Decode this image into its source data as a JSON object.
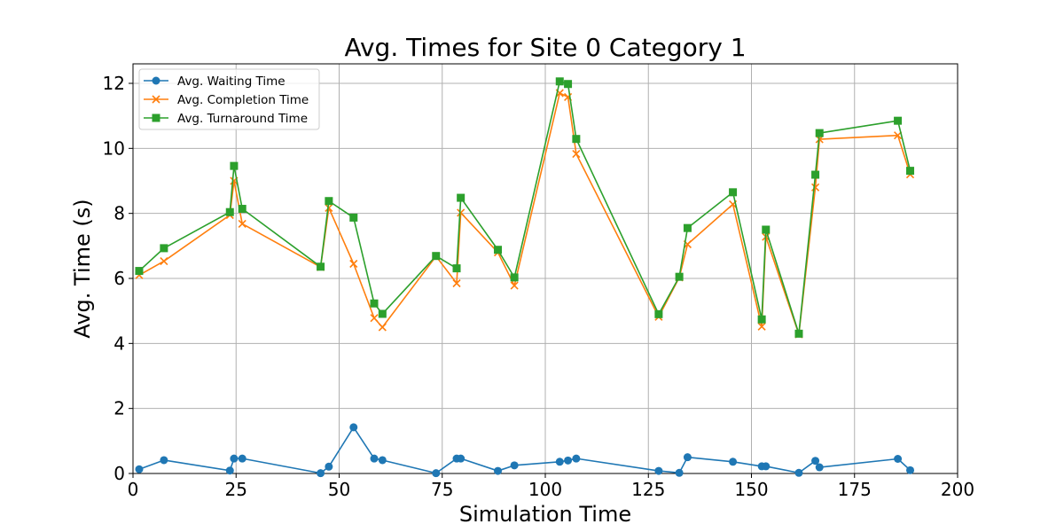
{
  "chart_data": {
    "type": "line",
    "title": "Avg. Times for Site 0 Category 1",
    "xlabel": "Simulation Time",
    "ylabel": "Avg. Time (s)",
    "xlim": [
      0,
      200
    ],
    "ylim": [
      0,
      12.6
    ],
    "xticks": [
      0,
      25,
      50,
      75,
      100,
      125,
      150,
      175,
      200
    ],
    "yticks": [
      0,
      2,
      4,
      6,
      8,
      10,
      12
    ],
    "grid": true,
    "legend_position": "top-left",
    "x": [
      1.5,
      7.5,
      23.5,
      24.5,
      26.5,
      45.5,
      47.5,
      53.5,
      58.5,
      60.5,
      73.5,
      78.5,
      79.5,
      88.5,
      92.5,
      103.5,
      105.5,
      107.5,
      127.5,
      132.5,
      134.5,
      145.5,
      152.5,
      153.5,
      161.5,
      165.5,
      166.5,
      185.5,
      188.5
    ],
    "series": [
      {
        "name": "Avg. Waiting Time",
        "color": "#1f77b4",
        "marker": "circle",
        "values": [
          0.13,
          0.41,
          0.09,
          0.46,
          0.46,
          0.01,
          0.21,
          1.42,
          0.46,
          0.41,
          0.01,
          0.46,
          0.46,
          0.08,
          0.25,
          0.36,
          0.4,
          0.46,
          0.08,
          0.02,
          0.5,
          0.36,
          0.22,
          0.22,
          0.02,
          0.39,
          0.19,
          0.45,
          0.1
        ]
      },
      {
        "name": "Avg. Completion Time",
        "color": "#ff7f0e",
        "marker": "x",
        "values": [
          6.1,
          6.53,
          7.95,
          9.0,
          7.68,
          6.35,
          8.17,
          6.45,
          4.78,
          4.5,
          6.68,
          5.85,
          8.02,
          6.8,
          5.78,
          11.7,
          11.58,
          9.83,
          4.82,
          6.03,
          7.05,
          8.28,
          4.52,
          7.28,
          4.28,
          8.8,
          10.28,
          10.4,
          9.2
        ]
      },
      {
        "name": "Avg. Turnaround Time",
        "color": "#2ca02c",
        "marker": "square",
        "values": [
          6.23,
          6.93,
          8.04,
          9.46,
          8.14,
          6.36,
          8.38,
          7.87,
          5.23,
          4.91,
          6.69,
          6.31,
          8.48,
          6.88,
          6.03,
          12.06,
          11.98,
          10.29,
          4.9,
          6.05,
          7.55,
          8.65,
          4.74,
          7.5,
          4.3,
          9.19,
          10.47,
          10.85,
          9.31
        ]
      }
    ]
  }
}
